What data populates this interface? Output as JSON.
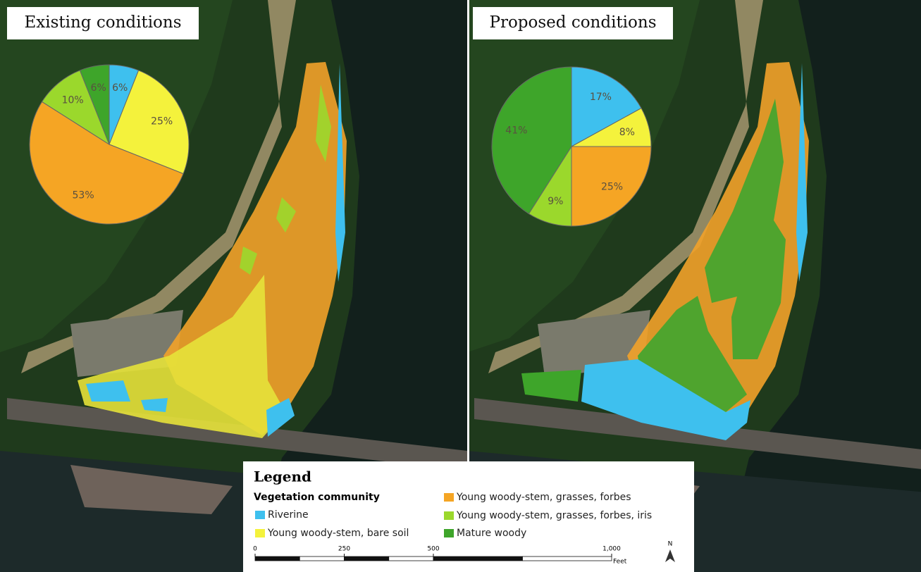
{
  "panels": [
    {
      "title": "Existing conditions",
      "chart_data": {
        "type": "pie",
        "values": [
          6,
          25,
          53,
          10,
          6
        ],
        "value_labels": [
          "6%",
          "25%",
          "53%",
          "10%",
          "6%"
        ]
      }
    },
    {
      "title": "Proposed conditions",
      "chart_data": {
        "type": "pie",
        "values": [
          17,
          8,
          25,
          9,
          41
        ],
        "value_labels": [
          "17%",
          "8%",
          "25%",
          "9%",
          "41%"
        ]
      }
    }
  ],
  "legend": {
    "title": "Legend",
    "subtitle": "Vegetation community",
    "items": [
      {
        "name": "Riverine",
        "color": "#3ec0ee"
      },
      {
        "name": "Young woody-stem, bare soil",
        "color": "#f4f23c"
      },
      {
        "name": "Young woody-stem, grasses, forbes",
        "color": "#f5a524"
      },
      {
        "name": "Young woody-stem, grasses, forbes, iris",
        "color": "#9bd82c"
      },
      {
        "name": "Mature woody",
        "color": "#3ea52a"
      }
    ]
  },
  "scale_bar": {
    "ticks": [
      0,
      250,
      500,
      {
        "value": 1000,
        "label": "1,000"
      }
    ],
    "unit": "Feet"
  },
  "north_arrow": "N"
}
